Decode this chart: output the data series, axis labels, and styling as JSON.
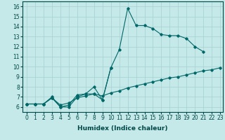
{
  "xlabel": "Humidex (Indice chaleur)",
  "xlim": [
    -0.5,
    23.3
  ],
  "ylim": [
    5.5,
    16.5
  ],
  "xticks": [
    0,
    1,
    2,
    3,
    4,
    5,
    6,
    7,
    8,
    9,
    10,
    11,
    12,
    13,
    14,
    15,
    16,
    17,
    18,
    19,
    20,
    21,
    22,
    23
  ],
  "yticks": [
    6,
    7,
    8,
    9,
    10,
    11,
    12,
    13,
    14,
    15,
    16
  ],
  "bg_color": "#c5e8e8",
  "grid_color": "#a8d0d0",
  "line_color": "#006868",
  "line1_y": [
    6.3,
    6.3,
    6.3,
    7.0,
    6.0,
    6.0,
    7.0,
    7.3,
    7.3,
    6.7,
    9.9,
    11.7,
    15.8,
    14.1,
    14.1,
    13.8,
    13.2,
    13.1,
    13.1,
    12.8,
    12.0,
    11.5,
    null,
    null
  ],
  "line2_y": [
    6.3,
    6.3,
    6.3,
    6.9,
    6.0,
    6.2,
    7.2,
    7.3,
    8.0,
    6.7,
    9.9,
    null,
    null,
    null,
    null,
    null,
    null,
    null,
    null,
    null,
    null,
    null,
    null,
    null
  ],
  "line3_y": [
    6.3,
    6.3,
    6.3,
    6.9,
    6.2,
    6.4,
    6.9,
    7.1,
    7.3,
    7.1,
    7.4,
    7.6,
    7.9,
    8.1,
    8.3,
    8.5,
    8.7,
    8.9,
    9.0,
    9.2,
    9.4,
    9.6,
    9.7,
    9.9
  ],
  "tick_fontsize": 5.5,
  "xlabel_fontsize": 6.5,
  "tick_color": "#004848",
  "spine_color": "#004848"
}
